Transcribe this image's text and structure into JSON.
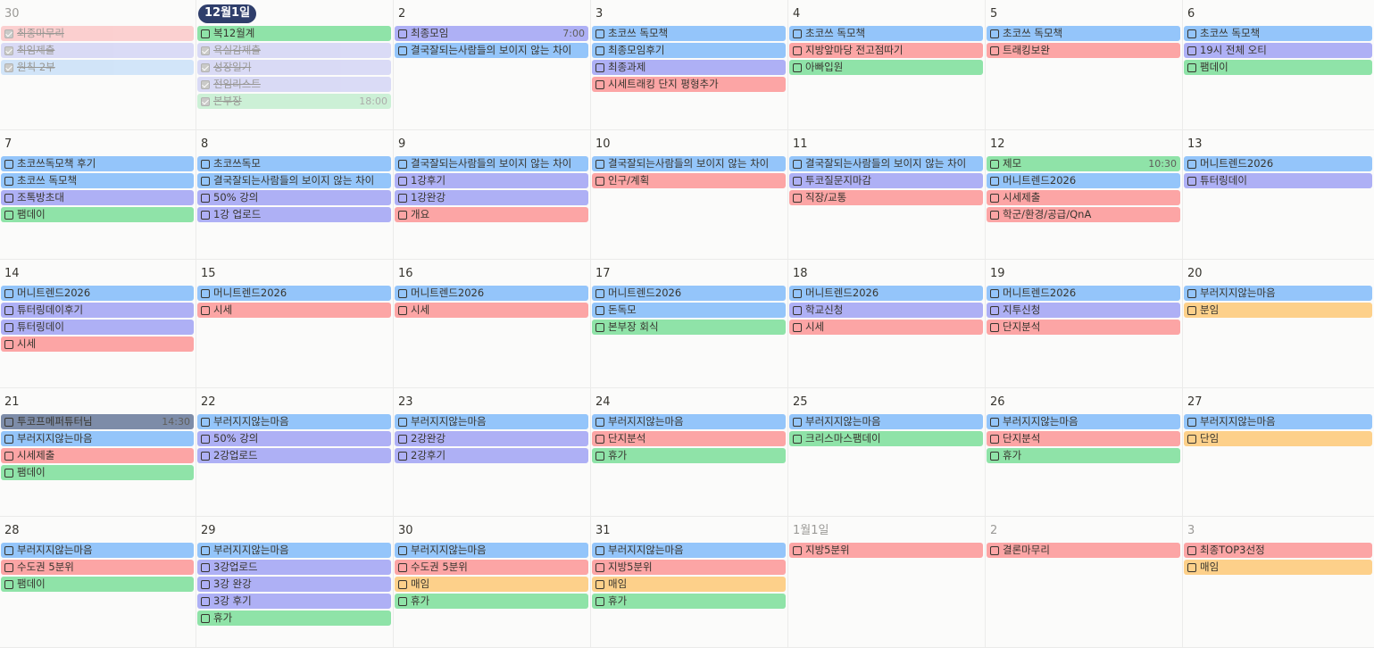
{
  "colors": {
    "blue": "#94c5fa",
    "purple": "#aeb0f5",
    "green": "#8fe3a8",
    "red": "#fca5a5",
    "orange": "#fdd08a",
    "gray": "#7d8ca8",
    "today_badge": "#2f3e6b"
  },
  "weeks": [
    [
      {
        "label": "30",
        "muted": true,
        "events": [
          {
            "title": "최종마무리",
            "color": "pink",
            "done": true
          },
          {
            "title": "최임제출",
            "color": "lav",
            "done": true
          },
          {
            "title": "원칙 2부",
            "color": "lblue",
            "done": true
          }
        ]
      },
      {
        "label": "12월1일",
        "today": true,
        "events": [
          {
            "title": "복12월계",
            "color": "green"
          },
          {
            "title": "욕실감제출",
            "color": "lav",
            "done": true
          },
          {
            "title": "성장일기",
            "color": "lav",
            "done": true
          },
          {
            "title": "전임리스트",
            "color": "lav",
            "done": true
          },
          {
            "title": "본부장",
            "color": "lgreen",
            "done": true,
            "time": "18:00"
          }
        ]
      },
      {
        "label": "2",
        "events": [
          {
            "title": "최종모임",
            "color": "purple",
            "time": "7:00"
          },
          {
            "title": "결국잘되는사람들의 보이지 않는 차이",
            "color": "blue"
          }
        ]
      },
      {
        "label": "3",
        "events": [
          {
            "title": "초코쓰 독모책",
            "color": "blue"
          },
          {
            "title": "최종모임후기",
            "color": "blue"
          },
          {
            "title": "최종과제",
            "color": "purple"
          },
          {
            "title": "시세트래킹 단지 평형추가",
            "color": "red"
          }
        ]
      },
      {
        "label": "4",
        "events": [
          {
            "title": "초코쓰 독모책",
            "color": "blue"
          },
          {
            "title": "지방앞마당 전고점따기",
            "color": "red"
          },
          {
            "title": "아빠입원",
            "color": "green"
          }
        ]
      },
      {
        "label": "5",
        "events": [
          {
            "title": "초코쓰 독모책",
            "color": "blue"
          },
          {
            "title": "트래킹보완",
            "color": "red"
          }
        ]
      },
      {
        "label": "6",
        "events": [
          {
            "title": "초코쓰 독모책",
            "color": "blue"
          },
          {
            "title": "19시 전체 오티",
            "color": "purple"
          },
          {
            "title": "팸데이",
            "color": "green"
          }
        ]
      }
    ],
    [
      {
        "label": "7",
        "events": [
          {
            "title": "초코쓰독모책 후기",
            "color": "blue"
          },
          {
            "title": "초코쓰 독모책",
            "color": "blue"
          },
          {
            "title": "조톡방초대",
            "color": "purple"
          },
          {
            "title": "팸데이",
            "color": "green"
          }
        ]
      },
      {
        "label": "8",
        "events": [
          {
            "title": "초코쓰독모",
            "color": "blue"
          },
          {
            "title": "결국잘되는사람들의 보이지 않는 차이",
            "color": "blue"
          },
          {
            "title": "50% 강의",
            "color": "purple"
          },
          {
            "title": "1강 업로드",
            "color": "purple"
          }
        ]
      },
      {
        "label": "9",
        "events": [
          {
            "title": "결국잘되는사람들의 보이지 않는 차이",
            "color": "blue"
          },
          {
            "title": "1강후기",
            "color": "purple"
          },
          {
            "title": "1강완강",
            "color": "purple"
          },
          {
            "title": "개요",
            "color": "red"
          }
        ]
      },
      {
        "label": "10",
        "events": [
          {
            "title": "결국잘되는사람들의 보이지 않는 차이",
            "color": "blue"
          },
          {
            "title": "인구/계획",
            "color": "red"
          }
        ]
      },
      {
        "label": "11",
        "events": [
          {
            "title": "결국잘되는사람들의 보이지 않는 차이",
            "color": "blue"
          },
          {
            "title": "투코질문지마감",
            "color": "purple"
          },
          {
            "title": "직장/교통",
            "color": "red"
          }
        ]
      },
      {
        "label": "12",
        "events": [
          {
            "title": "제모",
            "color": "green",
            "time": "10:30"
          },
          {
            "title": "머니트렌드2026",
            "color": "blue"
          },
          {
            "title": "시세제출",
            "color": "red"
          },
          {
            "title": "학군/환경/공급/QnA",
            "color": "red"
          }
        ]
      },
      {
        "label": "13",
        "events": [
          {
            "title": "머니트렌드2026",
            "color": "blue"
          },
          {
            "title": "튜터링데이",
            "color": "purple"
          }
        ]
      }
    ],
    [
      {
        "label": "14",
        "events": [
          {
            "title": "머니트렌드2026",
            "color": "blue"
          },
          {
            "title": "튜터링데이후기",
            "color": "purple"
          },
          {
            "title": "튜터링데이",
            "color": "purple"
          },
          {
            "title": "시세",
            "color": "red"
          }
        ]
      },
      {
        "label": "15",
        "events": [
          {
            "title": "머니트렌드2026",
            "color": "blue"
          },
          {
            "title": "시세",
            "color": "red"
          }
        ]
      },
      {
        "label": "16",
        "events": [
          {
            "title": "머니트렌드2026",
            "color": "blue"
          },
          {
            "title": "시세",
            "color": "red"
          }
        ]
      },
      {
        "label": "17",
        "events": [
          {
            "title": "머니트렌드2026",
            "color": "blue"
          },
          {
            "title": "돈독모",
            "color": "blue"
          },
          {
            "title": "본부장 회식",
            "color": "green"
          }
        ]
      },
      {
        "label": "18",
        "events": [
          {
            "title": "머니트렌드2026",
            "color": "blue"
          },
          {
            "title": "학교신청",
            "color": "purple"
          },
          {
            "title": "시세",
            "color": "red"
          }
        ]
      },
      {
        "label": "19",
        "events": [
          {
            "title": "머니트렌드2026",
            "color": "blue"
          },
          {
            "title": "지투신청",
            "color": "purple"
          },
          {
            "title": "단지분석",
            "color": "red"
          }
        ]
      },
      {
        "label": "20",
        "events": [
          {
            "title": "부러지지않는마음",
            "color": "blue"
          },
          {
            "title": "분임",
            "color": "orange"
          }
        ]
      }
    ],
    [
      {
        "label": "21",
        "events": [
          {
            "title": "투코프메퍼튜터님",
            "color": "gray",
            "time": "14:30"
          },
          {
            "title": "부러지지않는마음",
            "color": "blue"
          },
          {
            "title": "시세제출",
            "color": "red"
          },
          {
            "title": "팸데이",
            "color": "green"
          }
        ]
      },
      {
        "label": "22",
        "events": [
          {
            "title": "부러지지않는마음",
            "color": "blue"
          },
          {
            "title": "50% 강의",
            "color": "purple"
          },
          {
            "title": "2강업로드",
            "color": "purple"
          }
        ]
      },
      {
        "label": "23",
        "events": [
          {
            "title": "부러지지않는마음",
            "color": "blue"
          },
          {
            "title": "2강완강",
            "color": "purple"
          },
          {
            "title": "2강후기",
            "color": "purple"
          }
        ]
      },
      {
        "label": "24",
        "events": [
          {
            "title": "부러지지않는마음",
            "color": "blue"
          },
          {
            "title": "단지분석",
            "color": "red"
          },
          {
            "title": "휴가",
            "color": "green"
          }
        ]
      },
      {
        "label": "25",
        "events": [
          {
            "title": "부러지지않는마음",
            "color": "blue"
          },
          {
            "title": "크리스마스팸데이",
            "color": "green"
          }
        ]
      },
      {
        "label": "26",
        "events": [
          {
            "title": "부러지지않는마음",
            "color": "blue"
          },
          {
            "title": "단지분석",
            "color": "red"
          },
          {
            "title": "휴가",
            "color": "green"
          }
        ]
      },
      {
        "label": "27",
        "events": [
          {
            "title": "부러지지않는마음",
            "color": "blue"
          },
          {
            "title": "단임",
            "color": "orange"
          }
        ]
      }
    ],
    [
      {
        "label": "28",
        "events": [
          {
            "title": "부러지지않는마음",
            "color": "blue"
          },
          {
            "title": "수도권 5분위",
            "color": "red"
          },
          {
            "title": "팸데이",
            "color": "green"
          }
        ]
      },
      {
        "label": "29",
        "events": [
          {
            "title": "부러지지않는마음",
            "color": "blue"
          },
          {
            "title": "3강업로드",
            "color": "purple"
          },
          {
            "title": "3강 완강",
            "color": "purple"
          },
          {
            "title": "3강 후기",
            "color": "purple"
          },
          {
            "title": "휴가",
            "color": "green"
          }
        ]
      },
      {
        "label": "30",
        "events": [
          {
            "title": "부러지지않는마음",
            "color": "blue"
          },
          {
            "title": "수도권 5분위",
            "color": "red"
          },
          {
            "title": "매임",
            "color": "orange"
          },
          {
            "title": "휴가",
            "color": "green"
          }
        ]
      },
      {
        "label": "31",
        "events": [
          {
            "title": "부러지지않는마음",
            "color": "blue"
          },
          {
            "title": "지방5분위",
            "color": "red"
          },
          {
            "title": "매임",
            "color": "orange"
          },
          {
            "title": "휴가",
            "color": "green"
          }
        ]
      },
      {
        "label": "1월1일",
        "muted": true,
        "events": [
          {
            "title": "지방5분위",
            "color": "red"
          }
        ]
      },
      {
        "label": "2",
        "muted": true,
        "events": [
          {
            "title": "결론마무리",
            "color": "red"
          }
        ]
      },
      {
        "label": "3",
        "muted": true,
        "events": [
          {
            "title": "최종TOP3선정",
            "color": "red"
          },
          {
            "title": "매임",
            "color": "orange"
          }
        ]
      }
    ]
  ]
}
